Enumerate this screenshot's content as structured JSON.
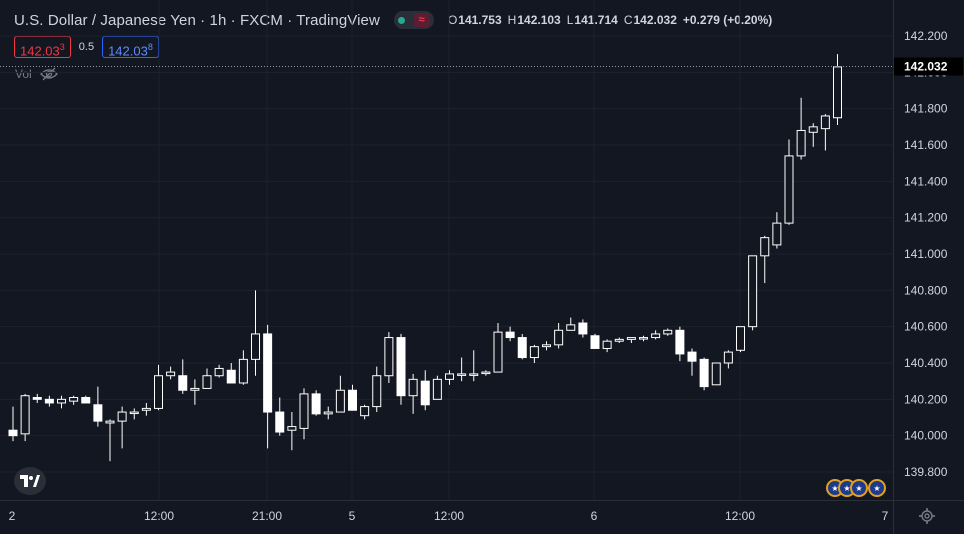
{
  "header": {
    "title": "U.S. Dollar / Japanese Yen · 1h · FXCM · TradingView",
    "open_label": "O",
    "open": "141.753",
    "high_label": "H",
    "high": "142.103",
    "low_label": "L",
    "low": "141.714",
    "close_label": "C",
    "close": "142.032",
    "change": "+0.279 (+0.20%)"
  },
  "quote": {
    "sell_main": "142.03",
    "sell_sup": "3",
    "spread": "0.5",
    "buy_main": "142.03",
    "buy_sup": "8"
  },
  "volume_label": "Vol",
  "last_price_label": "142.032",
  "icons": {
    "status": "market-open-dot",
    "eye": "eye-off-icon",
    "logo": "tradingview-logo",
    "flags": "us-flag-icon",
    "settings": "gear-icon"
  },
  "colors": {
    "background": "#131722",
    "grid": "#1e222d",
    "candle": "#ffffff",
    "text": "#d1d4dc",
    "sell": "#f23645",
    "buy": "#2962ff"
  },
  "chart_data": {
    "type": "candlestick",
    "title": "U.S. Dollar / Japanese Yen · 1h · FXCM · TradingView",
    "ylim": [
      139.7,
      142.25
    ],
    "y_ticks": [
      "142.200",
      "142.000",
      "141.800",
      "141.600",
      "141.400",
      "141.200",
      "141.000",
      "140.800",
      "140.600",
      "140.400",
      "140.200",
      "140.000",
      "139.800"
    ],
    "x_ticks": [
      "2",
      "12:00",
      "21:00",
      "5",
      "12:00",
      "6",
      "12:00",
      "7"
    ],
    "grid": true,
    "candles": [
      [
        140.03,
        140.16,
        139.97,
        140.0
      ],
      [
        140.01,
        140.23,
        139.97,
        140.22
      ],
      [
        140.21,
        140.23,
        140.18,
        140.2
      ],
      [
        140.2,
        140.22,
        140.16,
        140.18
      ],
      [
        140.18,
        140.22,
        140.15,
        140.2
      ],
      [
        140.19,
        140.22,
        140.17,
        140.21
      ],
      [
        140.21,
        140.22,
        140.18,
        140.18
      ],
      [
        140.17,
        140.27,
        140.05,
        140.08
      ],
      [
        140.07,
        140.09,
        139.86,
        140.08
      ],
      [
        140.08,
        140.16,
        139.93,
        140.13
      ],
      [
        140.13,
        140.15,
        140.09,
        140.13
      ],
      [
        140.14,
        140.18,
        140.11,
        140.15
      ],
      [
        140.15,
        140.39,
        140.14,
        140.33
      ],
      [
        140.33,
        140.38,
        140.31,
        140.35
      ],
      [
        140.33,
        140.42,
        140.23,
        140.25
      ],
      [
        140.25,
        140.31,
        140.17,
        140.26
      ],
      [
        140.26,
        140.37,
        140.26,
        140.33
      ],
      [
        140.33,
        140.39,
        140.32,
        140.37
      ],
      [
        140.36,
        140.4,
        140.29,
        140.29
      ],
      [
        140.29,
        140.47,
        140.28,
        140.42
      ],
      [
        140.42,
        140.8,
        140.33,
        140.56
      ],
      [
        140.56,
        140.61,
        139.93,
        140.13
      ],
      [
        140.13,
        140.21,
        140.0,
        140.02
      ],
      [
        140.03,
        140.13,
        139.92,
        140.05
      ],
      [
        140.04,
        140.26,
        139.98,
        140.23
      ],
      [
        140.23,
        140.25,
        140.11,
        140.12
      ],
      [
        140.12,
        140.16,
        140.09,
        140.13
      ],
      [
        140.13,
        140.33,
        140.13,
        140.25
      ],
      [
        140.25,
        140.28,
        140.14,
        140.14
      ],
      [
        140.11,
        140.17,
        140.09,
        140.16
      ],
      [
        140.16,
        140.38,
        140.13,
        140.33
      ],
      [
        140.33,
        140.57,
        140.29,
        140.54
      ],
      [
        140.54,
        140.56,
        140.17,
        140.22
      ],
      [
        140.22,
        140.34,
        140.12,
        140.31
      ],
      [
        140.3,
        140.36,
        140.14,
        140.17
      ],
      [
        140.2,
        140.33,
        140.2,
        140.31
      ],
      [
        140.31,
        140.36,
        140.28,
        140.34
      ],
      [
        140.34,
        140.43,
        140.3,
        140.34
      ],
      [
        140.34,
        140.47,
        140.3,
        140.34
      ],
      [
        140.35,
        140.36,
        140.33,
        140.35
      ],
      [
        140.35,
        140.62,
        140.35,
        140.57
      ],
      [
        140.57,
        140.6,
        140.52,
        140.54
      ],
      [
        140.54,
        140.56,
        140.42,
        140.43
      ],
      [
        140.43,
        140.5,
        140.4,
        140.49
      ],
      [
        140.49,
        140.52,
        140.47,
        140.5
      ],
      [
        140.5,
        140.62,
        140.48,
        140.58
      ],
      [
        140.58,
        140.65,
        140.6,
        140.61
      ],
      [
        140.62,
        140.64,
        140.54,
        140.56
      ],
      [
        140.55,
        140.56,
        140.48,
        140.48
      ],
      [
        140.48,
        140.53,
        140.46,
        140.52
      ],
      [
        140.52,
        140.54,
        140.51,
        140.53
      ],
      [
        140.53,
        140.54,
        140.51,
        140.54
      ],
      [
        140.54,
        140.55,
        140.52,
        140.54
      ],
      [
        140.54,
        140.58,
        140.53,
        140.56
      ],
      [
        140.56,
        140.59,
        140.55,
        140.58
      ],
      [
        140.58,
        140.6,
        140.41,
        140.45
      ],
      [
        140.46,
        140.48,
        140.33,
        140.41
      ],
      [
        140.42,
        140.43,
        140.25,
        140.27
      ],
      [
        140.28,
        140.4,
        140.28,
        140.4
      ],
      [
        140.4,
        140.47,
        140.37,
        140.46
      ],
      [
        140.47,
        140.6,
        140.46,
        140.6
      ],
      [
        140.6,
        140.99,
        140.58,
        140.99
      ],
      [
        140.99,
        141.1,
        140.84,
        141.09
      ],
      [
        141.05,
        141.23,
        141.03,
        141.17
      ],
      [
        141.17,
        141.63,
        141.16,
        141.54
      ],
      [
        141.54,
        141.86,
        141.52,
        141.68
      ],
      [
        141.67,
        141.72,
        141.59,
        141.7
      ],
      [
        141.69,
        141.77,
        141.57,
        141.76
      ],
      [
        141.75,
        142.1,
        141.71,
        142.03
      ]
    ],
    "last_price": 142.032
  }
}
